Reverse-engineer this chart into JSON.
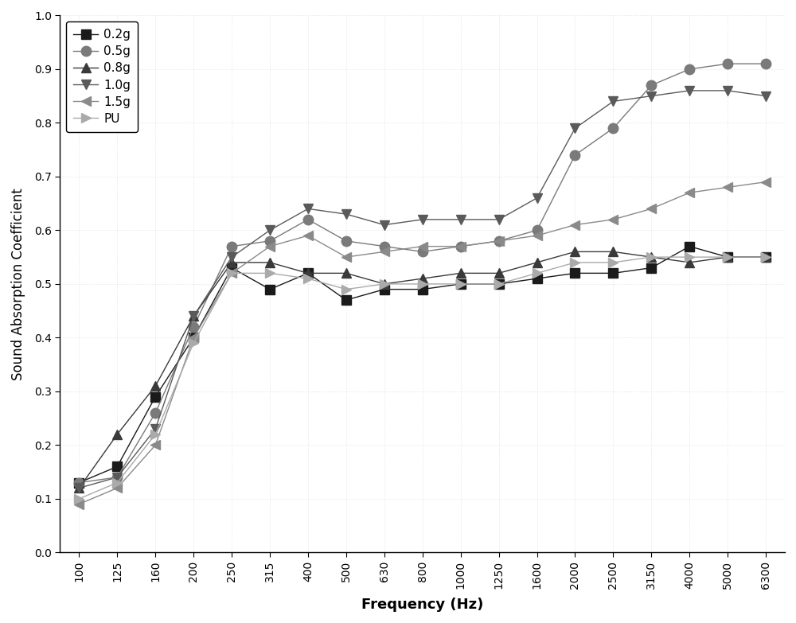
{
  "frequencies": [
    100,
    125,
    160,
    200,
    250,
    315,
    400,
    500,
    630,
    800,
    1000,
    1250,
    1600,
    2000,
    2500,
    3150,
    4000,
    5000,
    6300
  ],
  "series": {
    "0.2g": [
      0.13,
      0.16,
      0.29,
      0.4,
      0.53,
      0.49,
      0.52,
      0.47,
      0.49,
      0.49,
      0.5,
      0.5,
      0.51,
      0.52,
      0.52,
      0.53,
      0.57,
      0.55,
      0.55
    ],
    "0.5g": [
      0.13,
      0.14,
      0.26,
      0.42,
      0.57,
      0.58,
      0.62,
      0.58,
      0.57,
      0.56,
      0.57,
      0.58,
      0.6,
      0.74,
      0.79,
      0.87,
      0.9,
      0.91,
      0.91
    ],
    "0.8g": [
      0.12,
      0.22,
      0.31,
      0.44,
      0.54,
      0.54,
      0.52,
      0.52,
      0.5,
      0.51,
      0.52,
      0.52,
      0.54,
      0.56,
      0.56,
      0.55,
      0.54,
      0.55,
      0.55
    ],
    "1.0g": [
      0.12,
      0.14,
      0.23,
      0.44,
      0.55,
      0.6,
      0.64,
      0.63,
      0.61,
      0.62,
      0.62,
      0.62,
      0.66,
      0.79,
      0.84,
      0.85,
      0.86,
      0.86,
      0.85
    ],
    "1.5g": [
      0.09,
      0.12,
      0.2,
      0.4,
      0.52,
      0.57,
      0.59,
      0.55,
      0.56,
      0.57,
      0.57,
      0.58,
      0.59,
      0.61,
      0.62,
      0.64,
      0.67,
      0.68,
      0.69
    ],
    "PU": [
      0.1,
      0.13,
      0.22,
      0.39,
      0.52,
      0.52,
      0.51,
      0.49,
      0.5,
      0.5,
      0.5,
      0.5,
      0.52,
      0.54,
      0.54,
      0.55,
      0.55,
      0.55,
      0.55
    ]
  },
  "colors": {
    "0.2g": "#1a1a1a",
    "0.5g": "#7a7a7a",
    "0.8g": "#3a3a3a",
    "1.0g": "#5a5a5a",
    "1.5g": "#8a8a8a",
    "PU": "#aaaaaa"
  },
  "markers": {
    "0.2g": "s",
    "0.5g": "o",
    "0.8g": "^",
    "1.0g": "v",
    "1.5g": "<",
    "PU": ">"
  },
  "xlabel": "Frequency (Hz)",
  "ylabel": "Sound Absorption Coefficient",
  "ylim": [
    0.0,
    1.0
  ],
  "yticks": [
    0.0,
    0.1,
    0.2,
    0.3,
    0.4,
    0.5,
    0.6,
    0.7,
    0.8,
    0.9,
    1.0
  ],
  "legend_loc": "upper left",
  "markersize": 9,
  "linewidth": 1.0,
  "background_color": "#ffffff"
}
